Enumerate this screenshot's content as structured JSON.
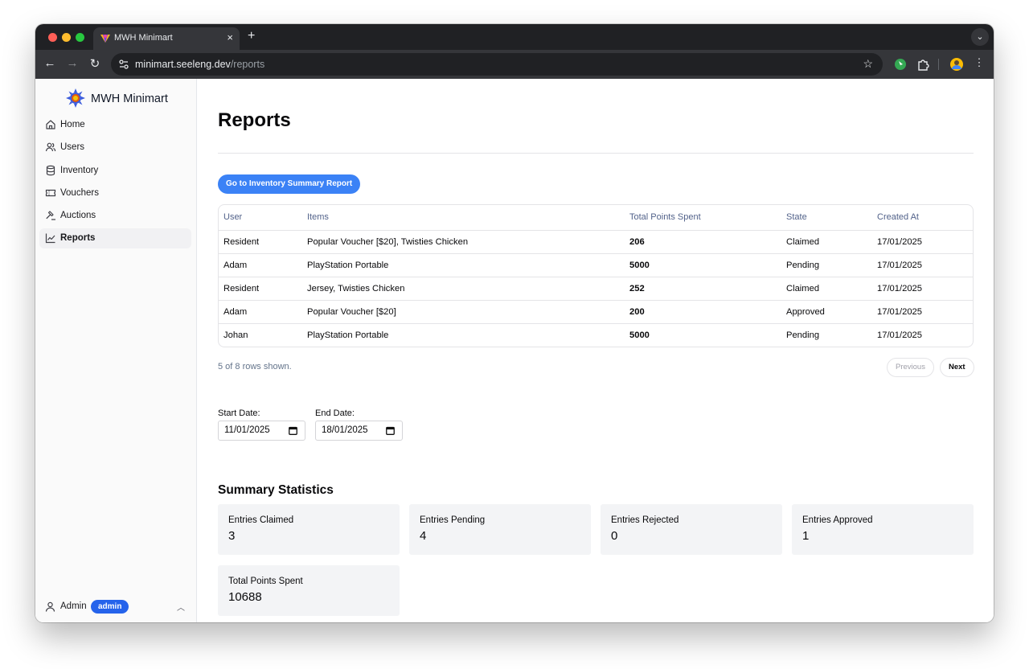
{
  "browser": {
    "tab_title": "MWH Minimart",
    "url_host": "minimart.seeleng.dev",
    "url_path": "/reports"
  },
  "sidebar": {
    "brand": "MWH Minimart",
    "items": [
      {
        "label": "Home",
        "icon": "home-icon"
      },
      {
        "label": "Users",
        "icon": "users-icon"
      },
      {
        "label": "Inventory",
        "icon": "database-icon"
      },
      {
        "label": "Vouchers",
        "icon": "ticket-icon"
      },
      {
        "label": "Auctions",
        "icon": "gavel-icon"
      },
      {
        "label": "Reports",
        "icon": "chart-icon",
        "active": true
      }
    ],
    "user": {
      "name": "Admin",
      "role": "admin"
    }
  },
  "main": {
    "title": "Reports",
    "inventory_button": "Go to Inventory Summary Report",
    "table": {
      "columns": [
        "User",
        "Items",
        "Total Points Spent",
        "State",
        "Created At"
      ],
      "rows": [
        [
          "Resident",
          "Popular Voucher [$20], Twisties Chicken",
          "206",
          "Claimed",
          "17/01/2025"
        ],
        [
          "Adam",
          "PlayStation Portable",
          "5000",
          "Pending",
          "17/01/2025"
        ],
        [
          "Resident",
          "Jersey, Twisties Chicken",
          "252",
          "Claimed",
          "17/01/2025"
        ],
        [
          "Adam",
          "Popular Voucher [$20]",
          "200",
          "Approved",
          "17/01/2025"
        ],
        [
          "Johan",
          "PlayStation Portable",
          "5000",
          "Pending",
          "17/01/2025"
        ]
      ]
    },
    "pagination": {
      "status": "5 of 8 rows shown.",
      "previous": "Previous",
      "next": "Next"
    },
    "filters": {
      "start_label": "Start Date:",
      "start_value": "11/01/2025",
      "end_label": "End Date:",
      "end_value": "18/01/2025"
    },
    "summary": {
      "title": "Summary Statistics",
      "stats": [
        {
          "label": "Entries Claimed",
          "value": "3"
        },
        {
          "label": "Entries Pending",
          "value": "4"
        },
        {
          "label": "Entries Rejected",
          "value": "0"
        },
        {
          "label": "Entries Approved",
          "value": "1"
        },
        {
          "label": "Total Points Spent",
          "value": "10688"
        }
      ]
    }
  },
  "colors": {
    "primary": "#3b82f6",
    "badge": "#2563eb",
    "card_bg": "#f3f4f6",
    "header_text": "#52628a"
  }
}
